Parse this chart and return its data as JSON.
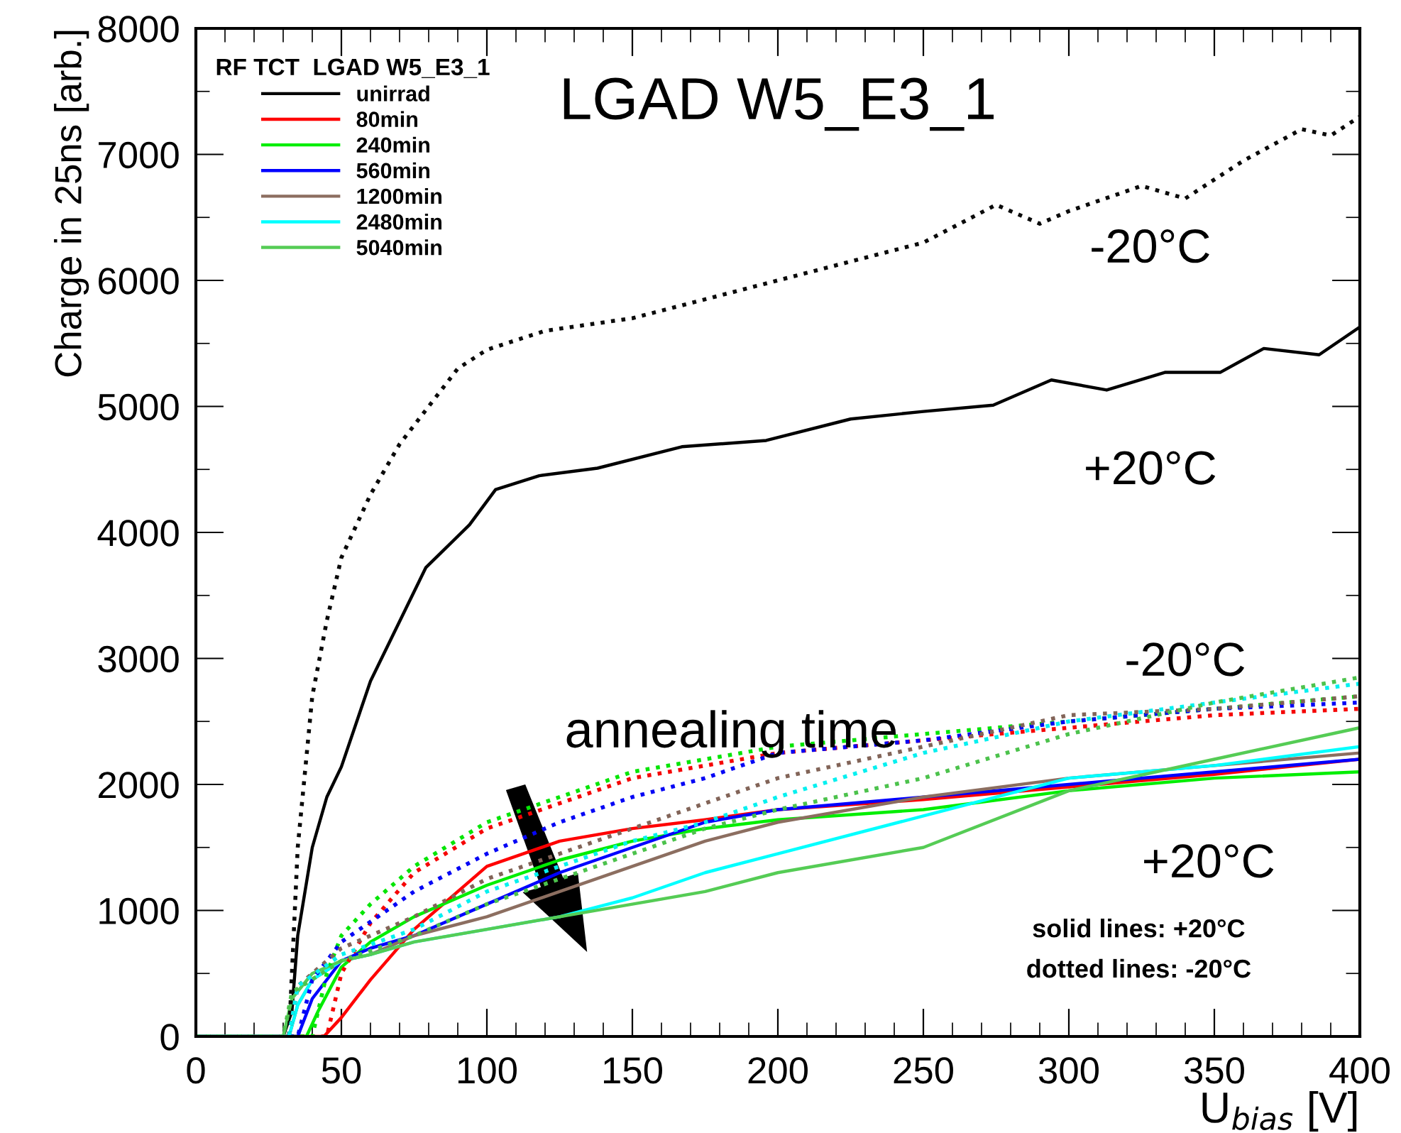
{
  "chart_data": {
    "type": "line",
    "title": "LGAD W5_E3_1",
    "xlabel": "U$_{bias}$ [V]",
    "ylabel": "Charge in 25ns [arb.]",
    "legend_title": "RF TCT  LGAD W5_E3_1",
    "legend": "top left",
    "grid": false,
    "marker": "none",
    "xlim": [
      0,
      400
    ],
    "xticks": [
      0,
      50,
      100,
      150,
      200,
      250,
      300,
      350,
      400
    ],
    "ylim": [
      0,
      8000
    ],
    "yticks": [
      0,
      1000,
      2000,
      3000,
      4000,
      5000,
      6000,
      7000,
      8000
    ],
    "annotations": [
      "-20°C",
      "+20°C",
      "-20°C",
      "+20°C",
      "annealing time",
      "solid lines: +20°C",
      "dotted lines: -20°C"
    ],
    "series": [
      {
        "name": "unirrad",
        "color": "#000000",
        "line_style": "solid",
        "x": [
          0,
          30,
          33,
          35,
          40,
          45,
          50,
          60,
          79,
          94,
          103,
          118,
          138,
          167,
          196,
          225,
          250,
          274,
          294,
          313,
          333,
          352,
          367,
          386,
          400
        ],
        "values": [
          0,
          0,
          200,
          800,
          1500,
          1900,
          2140,
          2820,
          3720,
          4060,
          4340,
          4450,
          4510,
          4680,
          4730,
          4900,
          4960,
          5010,
          5210,
          5130,
          5270,
          5270,
          5460,
          5410,
          5630
        ]
      },
      {
        "name": "80min",
        "color": "#ff0000",
        "line_style": "solid",
        "x": [
          0,
          44,
          50,
          60,
          75,
          90,
          100,
          125,
          150,
          175,
          200,
          250,
          300,
          350,
          400
        ],
        "values": [
          0,
          0,
          150,
          450,
          850,
          1150,
          1350,
          1550,
          1650,
          1720,
          1800,
          1880,
          1980,
          2080,
          2200
        ]
      },
      {
        "name": "240min",
        "color": "#00ee00",
        "line_style": "solid",
        "x": [
          0,
          38,
          42,
          50,
          60,
          75,
          100,
          125,
          150,
          175,
          200,
          250,
          300,
          350,
          400
        ],
        "values": [
          0,
          0,
          200,
          550,
          750,
          950,
          1200,
          1400,
          1550,
          1650,
          1720,
          1800,
          1950,
          2050,
          2100
        ]
      },
      {
        "name": "560min",
        "color": "#0000ff",
        "line_style": "solid",
        "x": [
          0,
          35,
          40,
          50,
          60,
          75,
          100,
          125,
          150,
          175,
          200,
          250,
          300,
          350,
          400
        ],
        "values": [
          0,
          0,
          300,
          600,
          700,
          800,
          1050,
          1300,
          1500,
          1700,
          1800,
          1900,
          2000,
          2100,
          2200
        ]
      },
      {
        "name": "1200min",
        "color": "#8c6e60",
        "line_style": "solid",
        "x": [
          0,
          32,
          35,
          40,
          50,
          60,
          75,
          100,
          125,
          150,
          175,
          200,
          250,
          300,
          350,
          400
        ],
        "values": [
          0,
          0,
          250,
          450,
          600,
          650,
          800,
          950,
          1150,
          1350,
          1550,
          1700,
          1900,
          2050,
          2150,
          2250
        ]
      },
      {
        "name": "2480min",
        "color": "#00ffff",
        "line_style": "solid",
        "x": [
          0,
          32,
          35,
          40,
          50,
          60,
          75,
          100,
          125,
          150,
          175,
          200,
          250,
          300,
          350,
          400
        ],
        "values": [
          0,
          0,
          250,
          450,
          600,
          650,
          750,
          850,
          950,
          1100,
          1300,
          1450,
          1750,
          2050,
          2150,
          2300
        ]
      },
      {
        "name": "5040min",
        "color": "#55cc55",
        "line_style": "solid",
        "x": [
          0,
          30,
          33,
          40,
          50,
          60,
          75,
          100,
          125,
          150,
          175,
          200,
          250,
          300,
          350,
          400
        ],
        "values": [
          0,
          0,
          300,
          500,
          600,
          650,
          750,
          850,
          950,
          1050,
          1150,
          1300,
          1500,
          1950,
          2200,
          2450
        ]
      },
      {
        "color": "#0a0a0a",
        "line_style": "dotted",
        "x": [
          0,
          32,
          35,
          40,
          45,
          50,
          60,
          70,
          80,
          90,
          100,
          120,
          150,
          175,
          200,
          225,
          250,
          275,
          290,
          300,
          325,
          340,
          360,
          380,
          390,
          400
        ],
        "values": [
          0,
          0,
          1500,
          2700,
          3300,
          3800,
          4300,
          4700,
          5000,
          5300,
          5450,
          5600,
          5700,
          5850,
          6000,
          6150,
          6300,
          6600,
          6450,
          6550,
          6750,
          6650,
          6950,
          7200,
          7150,
          7300
        ]
      },
      {
        "color": "#f50505",
        "line_style": "dotted",
        "x": [
          0,
          45,
          50,
          60,
          75,
          100,
          125,
          150,
          175,
          200,
          250,
          300,
          350,
          400
        ],
        "values": [
          0,
          0,
          500,
          900,
          1300,
          1650,
          1850,
          2050,
          2150,
          2250,
          2350,
          2450,
          2550,
          2600
        ]
      },
      {
        "color": "#05e505",
        "line_style": "dotted",
        "x": [
          0,
          40,
          45,
          50,
          60,
          75,
          100,
          125,
          150,
          175,
          200,
          250,
          300,
          350,
          400
        ],
        "values": [
          0,
          0,
          500,
          800,
          1050,
          1350,
          1700,
          1900,
          2100,
          2200,
          2300,
          2400,
          2500,
          2600,
          2700
        ]
      },
      {
        "color": "#0505f5",
        "line_style": "dotted",
        "x": [
          0,
          35,
          40,
          50,
          75,
          100,
          125,
          150,
          175,
          200,
          250,
          300,
          350,
          400
        ],
        "values": [
          0,
          0,
          450,
          750,
          1150,
          1450,
          1700,
          1900,
          2050,
          2250,
          2350,
          2500,
          2600,
          2650
        ]
      },
      {
        "color": "#826458",
        "line_style": "dotted",
        "x": [
          0,
          32,
          35,
          50,
          75,
          100,
          125,
          150,
          175,
          200,
          250,
          300,
          350,
          400
        ],
        "values": [
          0,
          0,
          400,
          700,
          950,
          1250,
          1450,
          1650,
          1850,
          2050,
          2300,
          2550,
          2600,
          2700
        ]
      },
      {
        "color": "#05f0f0",
        "line_style": "dotted",
        "x": [
          0,
          32,
          35,
          50,
          75,
          100,
          125,
          150,
          175,
          200,
          250,
          300,
          350,
          400
        ],
        "values": [
          0,
          0,
          400,
          650,
          850,
          1150,
          1350,
          1550,
          1700,
          1900,
          2250,
          2500,
          2650,
          2800
        ]
      },
      {
        "color": "#4cc24c",
        "line_style": "dotted",
        "x": [
          0,
          30,
          33,
          50,
          75,
          100,
          125,
          150,
          175,
          200,
          250,
          300,
          350,
          400
        ],
        "values": [
          0,
          0,
          350,
          600,
          800,
          1050,
          1250,
          1450,
          1650,
          1800,
          2050,
          2400,
          2650,
          2850
        ]
      }
    ]
  }
}
